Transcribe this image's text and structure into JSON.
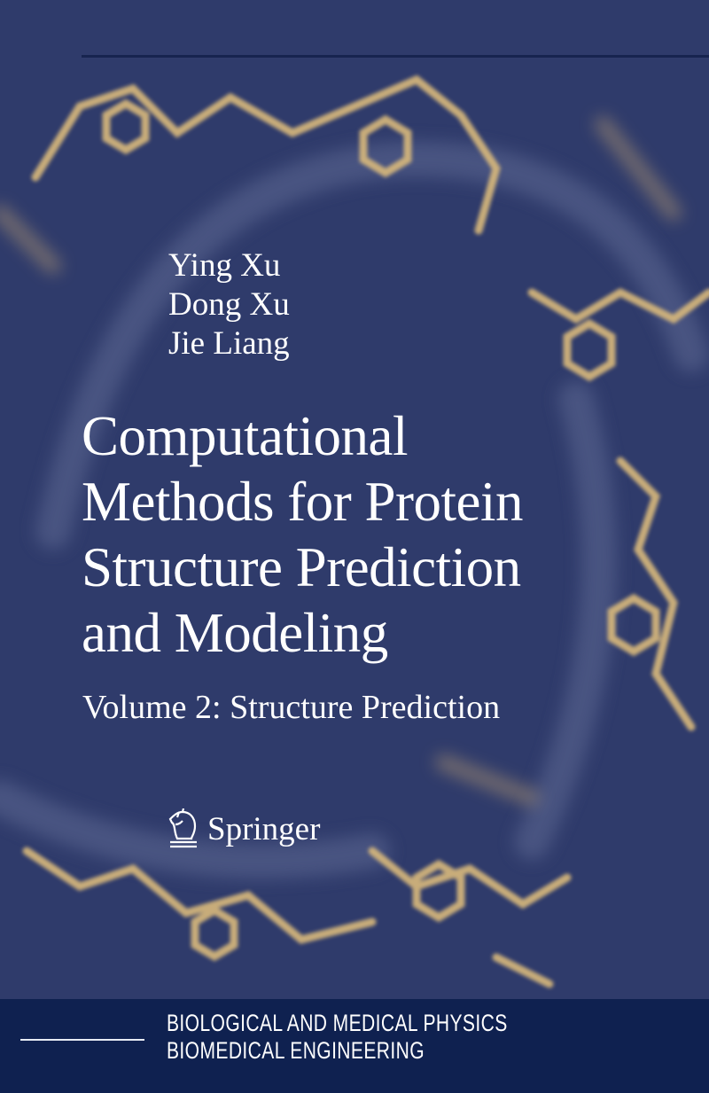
{
  "authors": [
    "Ying Xu",
    "Dong Xu",
    "Jie Liang"
  ],
  "title_lines": [
    "Computational",
    "Methods for Protein",
    "Structure Prediction",
    "and Modeling"
  ],
  "subtitle": "Volume 2: Structure Prediction",
  "publisher": {
    "name": "Springer",
    "logo_icon": "knight-horse-icon"
  },
  "series": [
    "BIOLOGICAL AND MEDICAL PHYSICS",
    "BIOMEDICAL ENGINEERING"
  ],
  "colors": {
    "background": "#2f3b6b",
    "band": "#0f2150",
    "molecule": "#d9b97c",
    "text": "#ffffff"
  }
}
